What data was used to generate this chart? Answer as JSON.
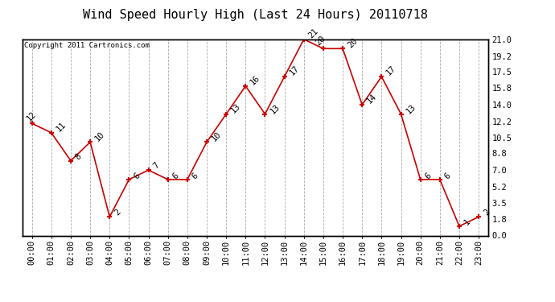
{
  "title": "Wind Speed Hourly High (Last 24 Hours) 20110718",
  "copyright_text": "Copyright 2011 Cartronics.com",
  "hours": [
    "00:00",
    "01:00",
    "02:00",
    "03:00",
    "04:00",
    "05:00",
    "06:00",
    "07:00",
    "08:00",
    "09:00",
    "10:00",
    "11:00",
    "12:00",
    "13:00",
    "14:00",
    "15:00",
    "16:00",
    "17:00",
    "18:00",
    "19:00",
    "20:00",
    "21:00",
    "22:00",
    "23:00"
  ],
  "values": [
    12,
    11,
    8,
    10,
    2,
    6,
    7,
    6,
    6,
    10,
    13,
    16,
    13,
    17,
    21,
    20,
    20,
    14,
    17,
    13,
    6,
    6,
    1,
    2
  ],
  "line_color": "#cc0000",
  "marker_color": "#cc0000",
  "bg_color": "#ffffff",
  "plot_bg_color": "#ffffff",
  "grid_color": "#aaaaaa",
  "title_fontsize": 11,
  "label_fontsize": 7.5,
  "annotation_fontsize": 7.5,
  "ylim": [
    0,
    21.0
  ],
  "yticks_right": [
    0.0,
    1.8,
    3.5,
    5.2,
    7.0,
    8.8,
    10.5,
    12.2,
    14.0,
    15.8,
    17.5,
    19.2,
    21.0
  ]
}
